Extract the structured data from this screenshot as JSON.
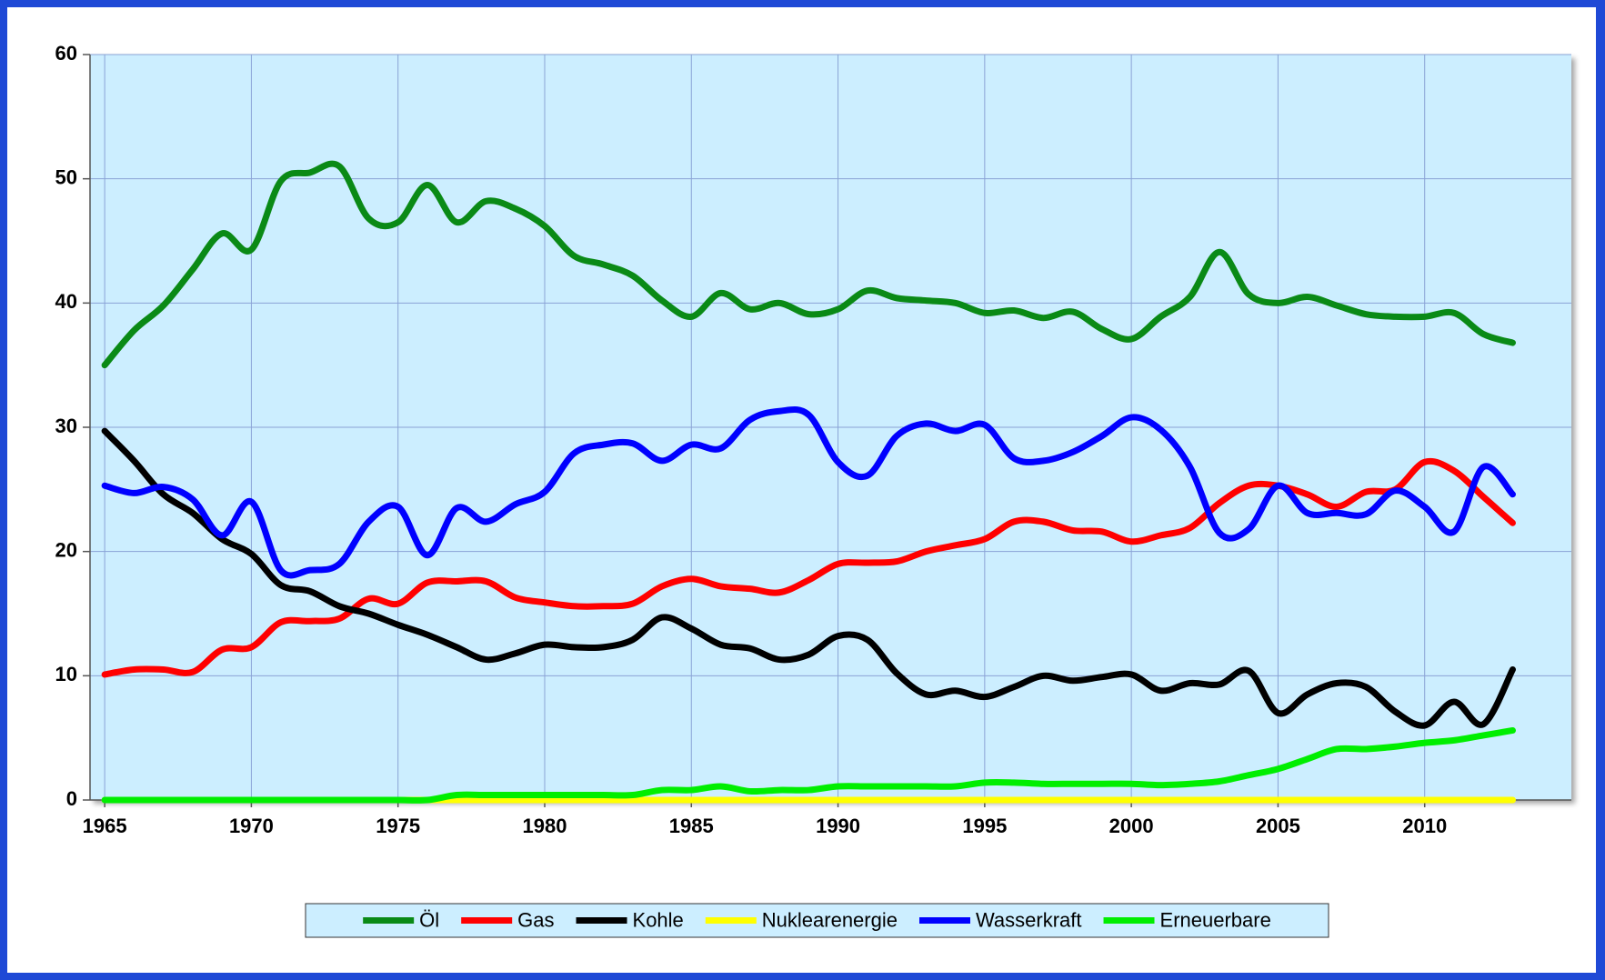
{
  "chart_data": {
    "type": "line",
    "x": [
      1965,
      1966,
      1967,
      1968,
      1969,
      1970,
      1971,
      1972,
      1973,
      1974,
      1975,
      1976,
      1977,
      1978,
      1979,
      1980,
      1981,
      1982,
      1983,
      1984,
      1985,
      1986,
      1987,
      1988,
      1989,
      1990,
      1991,
      1992,
      1993,
      1994,
      1995,
      1996,
      1997,
      1998,
      1999,
      2000,
      2001,
      2002,
      2003,
      2004,
      2005,
      2006,
      2007,
      2008,
      2009,
      2010,
      2011,
      2012,
      2013
    ],
    "xlim": [
      1964.5,
      2015
    ],
    "xticks": [
      1965,
      1970,
      1975,
      1980,
      1985,
      1990,
      1995,
      2000,
      2005,
      2010
    ],
    "ylim": [
      0,
      60
    ],
    "yticks": [
      0,
      10,
      20,
      30,
      40,
      50,
      60
    ],
    "grid": true,
    "legend": "bottom",
    "series": [
      {
        "name": "Öl",
        "color": "#0a8a16",
        "values": [
          35,
          37.8,
          39.8,
          42.7,
          45.6,
          44.3,
          49.8,
          50.5,
          51,
          46.8,
          46.5,
          49.5,
          46.5,
          48.2,
          47.6,
          46.2,
          43.8,
          43.1,
          42.2,
          40.2,
          38.9,
          40.8,
          39.5,
          40,
          39.1,
          39.5,
          41,
          40.4,
          40.2,
          40,
          39.2,
          39.4,
          38.8,
          39.3,
          37.9,
          37.1,
          38.9,
          40.5,
          44.1,
          40.7,
          40,
          40.5,
          39.8,
          39.1,
          38.9,
          38.9,
          39.2,
          37.5,
          36.8
        ]
      },
      {
        "name": "Gas",
        "color": "#ff0000",
        "values": [
          10.1,
          10.5,
          10.5,
          10.3,
          12.1,
          12.3,
          14.3,
          14.4,
          14.6,
          16.2,
          15.8,
          17.5,
          17.6,
          17.6,
          16.3,
          15.9,
          15.6,
          15.6,
          15.8,
          17.2,
          17.8,
          17.2,
          17,
          16.7,
          17.7,
          19,
          19.1,
          19.2,
          20,
          20.5,
          21,
          22.4,
          22.4,
          21.7,
          21.6,
          20.8,
          21.3,
          21.9,
          23.9,
          25.3,
          25.3,
          24.6,
          23.6,
          24.8,
          25,
          27.2,
          26.5,
          24.4,
          22.3
        ]
      },
      {
        "name": "Kohle",
        "color": "#000000",
        "values": [
          29.7,
          27.3,
          24.6,
          23.1,
          21,
          19.8,
          17.3,
          16.8,
          15.6,
          15,
          14.1,
          13.3,
          12.3,
          11.3,
          11.8,
          12.5,
          12.3,
          12.3,
          12.9,
          14.7,
          13.8,
          12.5,
          12.2,
          11.3,
          11.7,
          13.2,
          12.9,
          10.2,
          8.5,
          8.8,
          8.3,
          9.1,
          10,
          9.6,
          9.9,
          10.1,
          8.8,
          9.4,
          9.3,
          10.4,
          7,
          8.5,
          9.4,
          9.1,
          7.1,
          6,
          7.9,
          6.1,
          10.5
        ]
      },
      {
        "name": "Nuklearenergie",
        "color": "#ffff00",
        "values": [
          0,
          0,
          0,
          0,
          0,
          0,
          0,
          0,
          0,
          0,
          0,
          0,
          0,
          0,
          0,
          0,
          0,
          0,
          0,
          0,
          0,
          0,
          0,
          0,
          0,
          0,
          0,
          0,
          0,
          0,
          0,
          0,
          0,
          0,
          0,
          0,
          0,
          0,
          0,
          0,
          0,
          0,
          0,
          0,
          0,
          0,
          0,
          0,
          0
        ]
      },
      {
        "name": "Wasserkraft",
        "color": "#0000ff",
        "values": [
          25.3,
          24.7,
          25.2,
          24.2,
          21.3,
          24,
          18.5,
          18.5,
          19,
          22.4,
          23.6,
          19.7,
          23.5,
          22.4,
          23.8,
          24.8,
          27.9,
          28.6,
          28.7,
          27.3,
          28.6,
          28.3,
          30.6,
          31.3,
          31,
          27.2,
          26.1,
          29.3,
          30.3,
          29.7,
          30.2,
          27.5,
          27.3,
          28,
          29.3,
          30.8,
          29.8,
          26.8,
          21.5,
          21.8,
          25.3,
          23.1,
          23.1,
          23,
          24.9,
          23.6,
          21.6,
          26.8,
          24.6
        ]
      },
      {
        "name": "Erneuerbare",
        "color": "#00ee00",
        "values": [
          0,
          0,
          0,
          0,
          0,
          0,
          0,
          0,
          0,
          0,
          0,
          0,
          0.4,
          0.4,
          0.4,
          0.4,
          0.4,
          0.4,
          0.4,
          0.8,
          0.8,
          1.1,
          0.7,
          0.8,
          0.8,
          1.1,
          1.1,
          1.1,
          1.1,
          1.1,
          1.4,
          1.4,
          1.3,
          1.3,
          1.3,
          1.3,
          1.2,
          1.3,
          1.5,
          2,
          2.5,
          3.3,
          4.1,
          4.1,
          4.3,
          4.6,
          4.8,
          5.2,
          5.6
        ]
      }
    ]
  }
}
